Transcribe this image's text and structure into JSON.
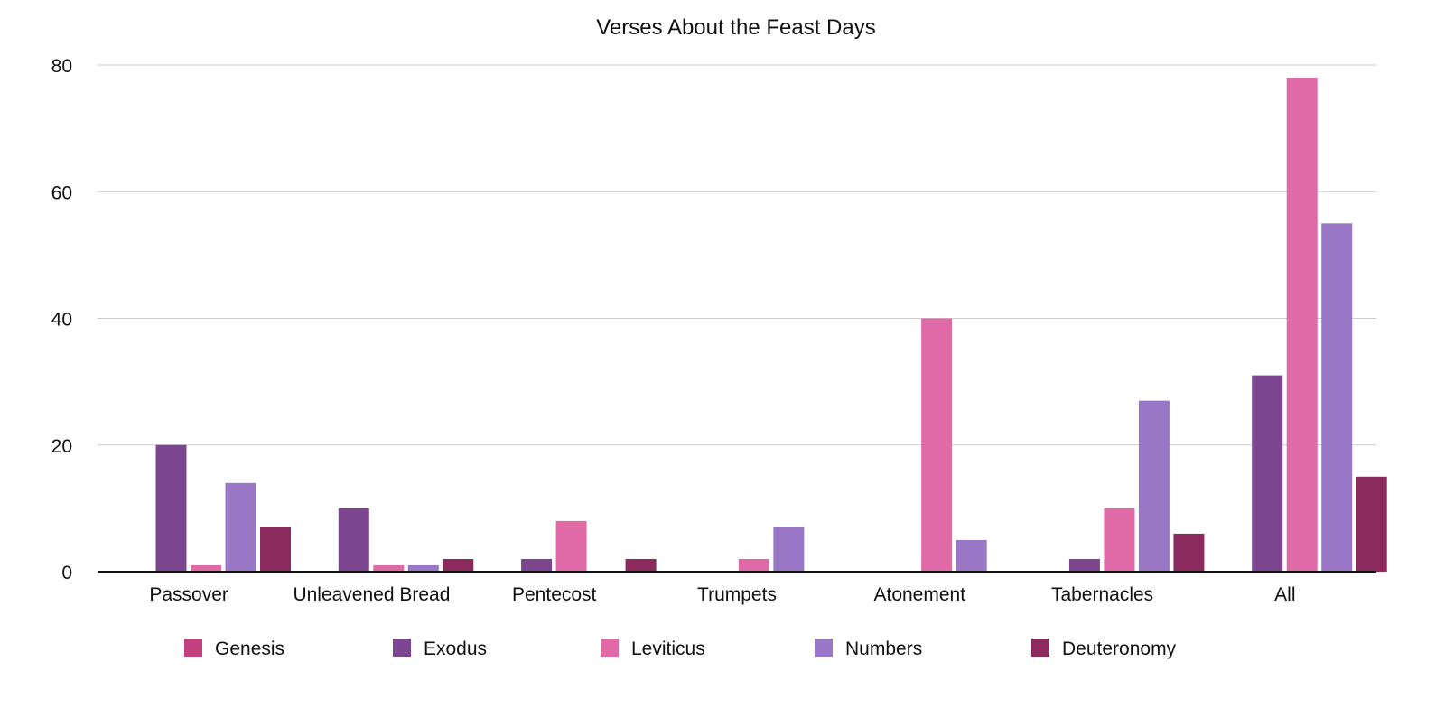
{
  "chart_data": {
    "type": "bar",
    "title": "Verses About the Feast Days",
    "xlabel": "",
    "ylabel": "",
    "ylim": [
      0,
      80
    ],
    "yticks": [
      0,
      20,
      40,
      60,
      80
    ],
    "grid": true,
    "legend_position": "bottom",
    "categories": [
      "Passover",
      "Unleavened Bread",
      "Pentecost",
      "Trumpets",
      "Atonement",
      "Tabernacles",
      "All"
    ],
    "series": [
      {
        "name": "Genesis",
        "color": "#c2407e",
        "values": [
          0,
          0,
          0,
          0,
          0,
          0,
          0
        ]
      },
      {
        "name": "Exodus",
        "color": "#7b468f",
        "values": [
          20,
          10,
          2,
          0,
          0,
          2,
          31
        ]
      },
      {
        "name": "Leviticus",
        "color": "#e06aa6",
        "values": [
          1,
          1,
          8,
          2,
          40,
          10,
          78
        ]
      },
      {
        "name": "Numbers",
        "color": "#9877c7",
        "values": [
          14,
          1,
          0,
          7,
          5,
          27,
          55
        ]
      },
      {
        "name": "Deuteronomy",
        "color": "#8b2a5d",
        "values": [
          7,
          2,
          2,
          0,
          0,
          6,
          15
        ]
      }
    ]
  }
}
